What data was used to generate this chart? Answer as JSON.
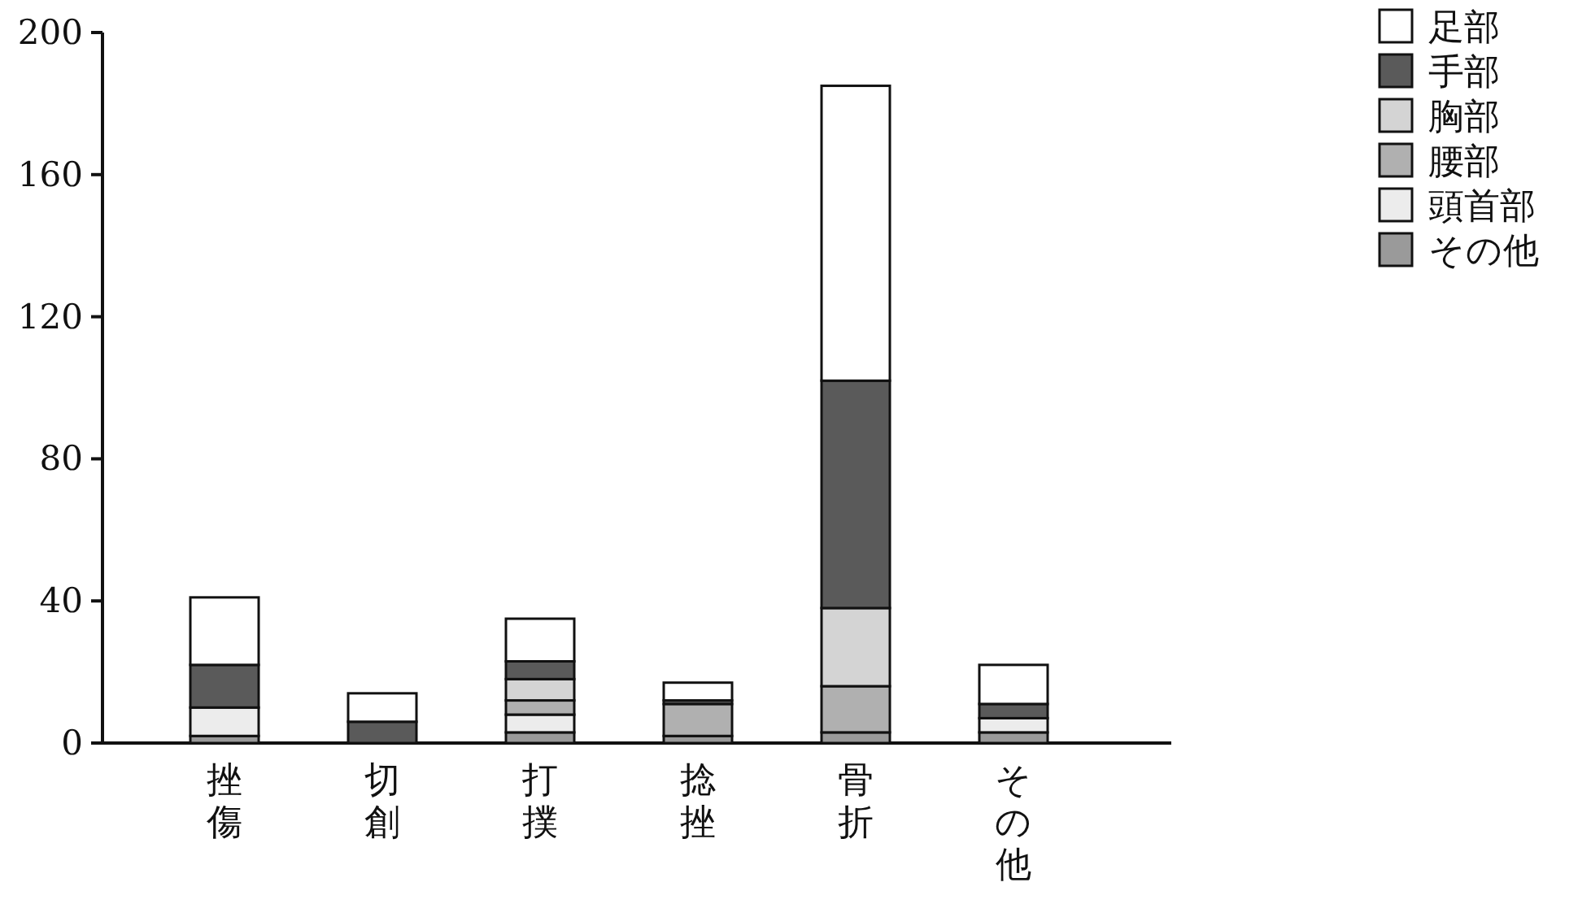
{
  "chart_data": {
    "type": "bar",
    "stacked": true,
    "categories": [
      "挫傷",
      "切創",
      "打撲",
      "捻挫",
      "骨折",
      "その他"
    ],
    "series": [
      {
        "name": "その他",
        "color": "#9a9a9a",
        "values": [
          2,
          0,
          3,
          2,
          3,
          3
        ]
      },
      {
        "name": "頭首部",
        "color": "#ececec",
        "values": [
          8,
          0,
          5,
          0,
          0,
          4
        ]
      },
      {
        "name": "腰部",
        "color": "#b0b0b0",
        "values": [
          0,
          0,
          4,
          9,
          13,
          0
        ]
      },
      {
        "name": "胸部",
        "color": "#d4d4d4",
        "values": [
          0,
          0,
          6,
          0,
          22,
          0
        ]
      },
      {
        "name": "手部",
        "color": "#5a5a5a",
        "values": [
          12,
          6,
          5,
          1,
          64,
          4
        ]
      },
      {
        "name": "足部",
        "color": "#ffffff",
        "values": [
          19,
          8,
          12,
          5,
          83,
          11
        ]
      }
    ],
    "ylim": [
      0,
      200
    ],
    "yticks": [
      0,
      40,
      80,
      120,
      160,
      200
    ],
    "legend": "top right"
  }
}
